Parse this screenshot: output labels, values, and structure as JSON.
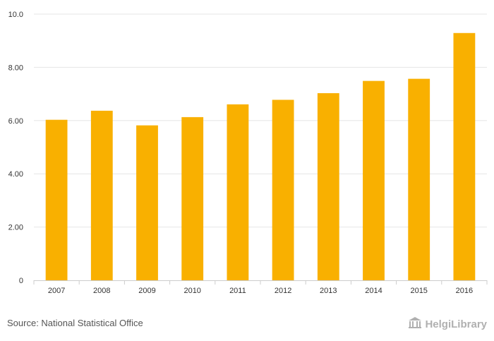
{
  "chart_data": {
    "type": "bar",
    "categories": [
      "2007",
      "2008",
      "2009",
      "2010",
      "2011",
      "2012",
      "2013",
      "2014",
      "2015",
      "2016"
    ],
    "values": [
      6.03,
      6.37,
      5.82,
      6.13,
      6.61,
      6.78,
      7.03,
      7.49,
      7.57,
      9.29
    ],
    "ylim": [
      0,
      10
    ],
    "yticks": [
      "0",
      "2.00",
      "4.00",
      "6.00",
      "8.00",
      "10.0"
    ],
    "grid": true,
    "bar_color": "#F9B000",
    "title": "",
    "xlabel": "",
    "ylabel": ""
  },
  "footer": {
    "source": "Source: National Statistical Office",
    "logo_text": "HelgiLibrary",
    "logo_icon": "library-building-icon"
  },
  "colors": {
    "grid": "#e6e6e6",
    "axis": "#cccccc",
    "text": "#333333",
    "logo": "#b0b0b0"
  }
}
